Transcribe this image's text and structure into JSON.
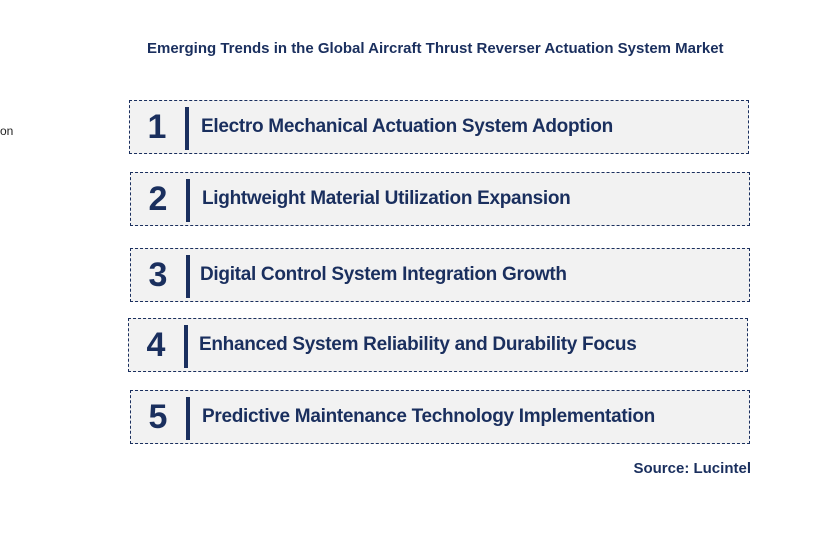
{
  "title": "Emerging Trends in the Global Aircraft Thrust Reverser Actuation System Market",
  "cut_text": "on",
  "trends": [
    {
      "number": "1",
      "label": "Electro Mechanical Actuation System Adoption"
    },
    {
      "number": "2",
      "label": "Lightweight Material Utilization Expansion"
    },
    {
      "number": "3",
      "label": "Digital Control System Integration Growth"
    },
    {
      "number": "4",
      "label": "Enhanced System Reliability and Durability Focus"
    },
    {
      "number": "5",
      "label": "Predictive Maintenance Technology Implementation"
    }
  ],
  "source": "Source: Lucintel",
  "colors": {
    "navy": "#1a2f5e",
    "box_fill": "#f2f2f2"
  }
}
